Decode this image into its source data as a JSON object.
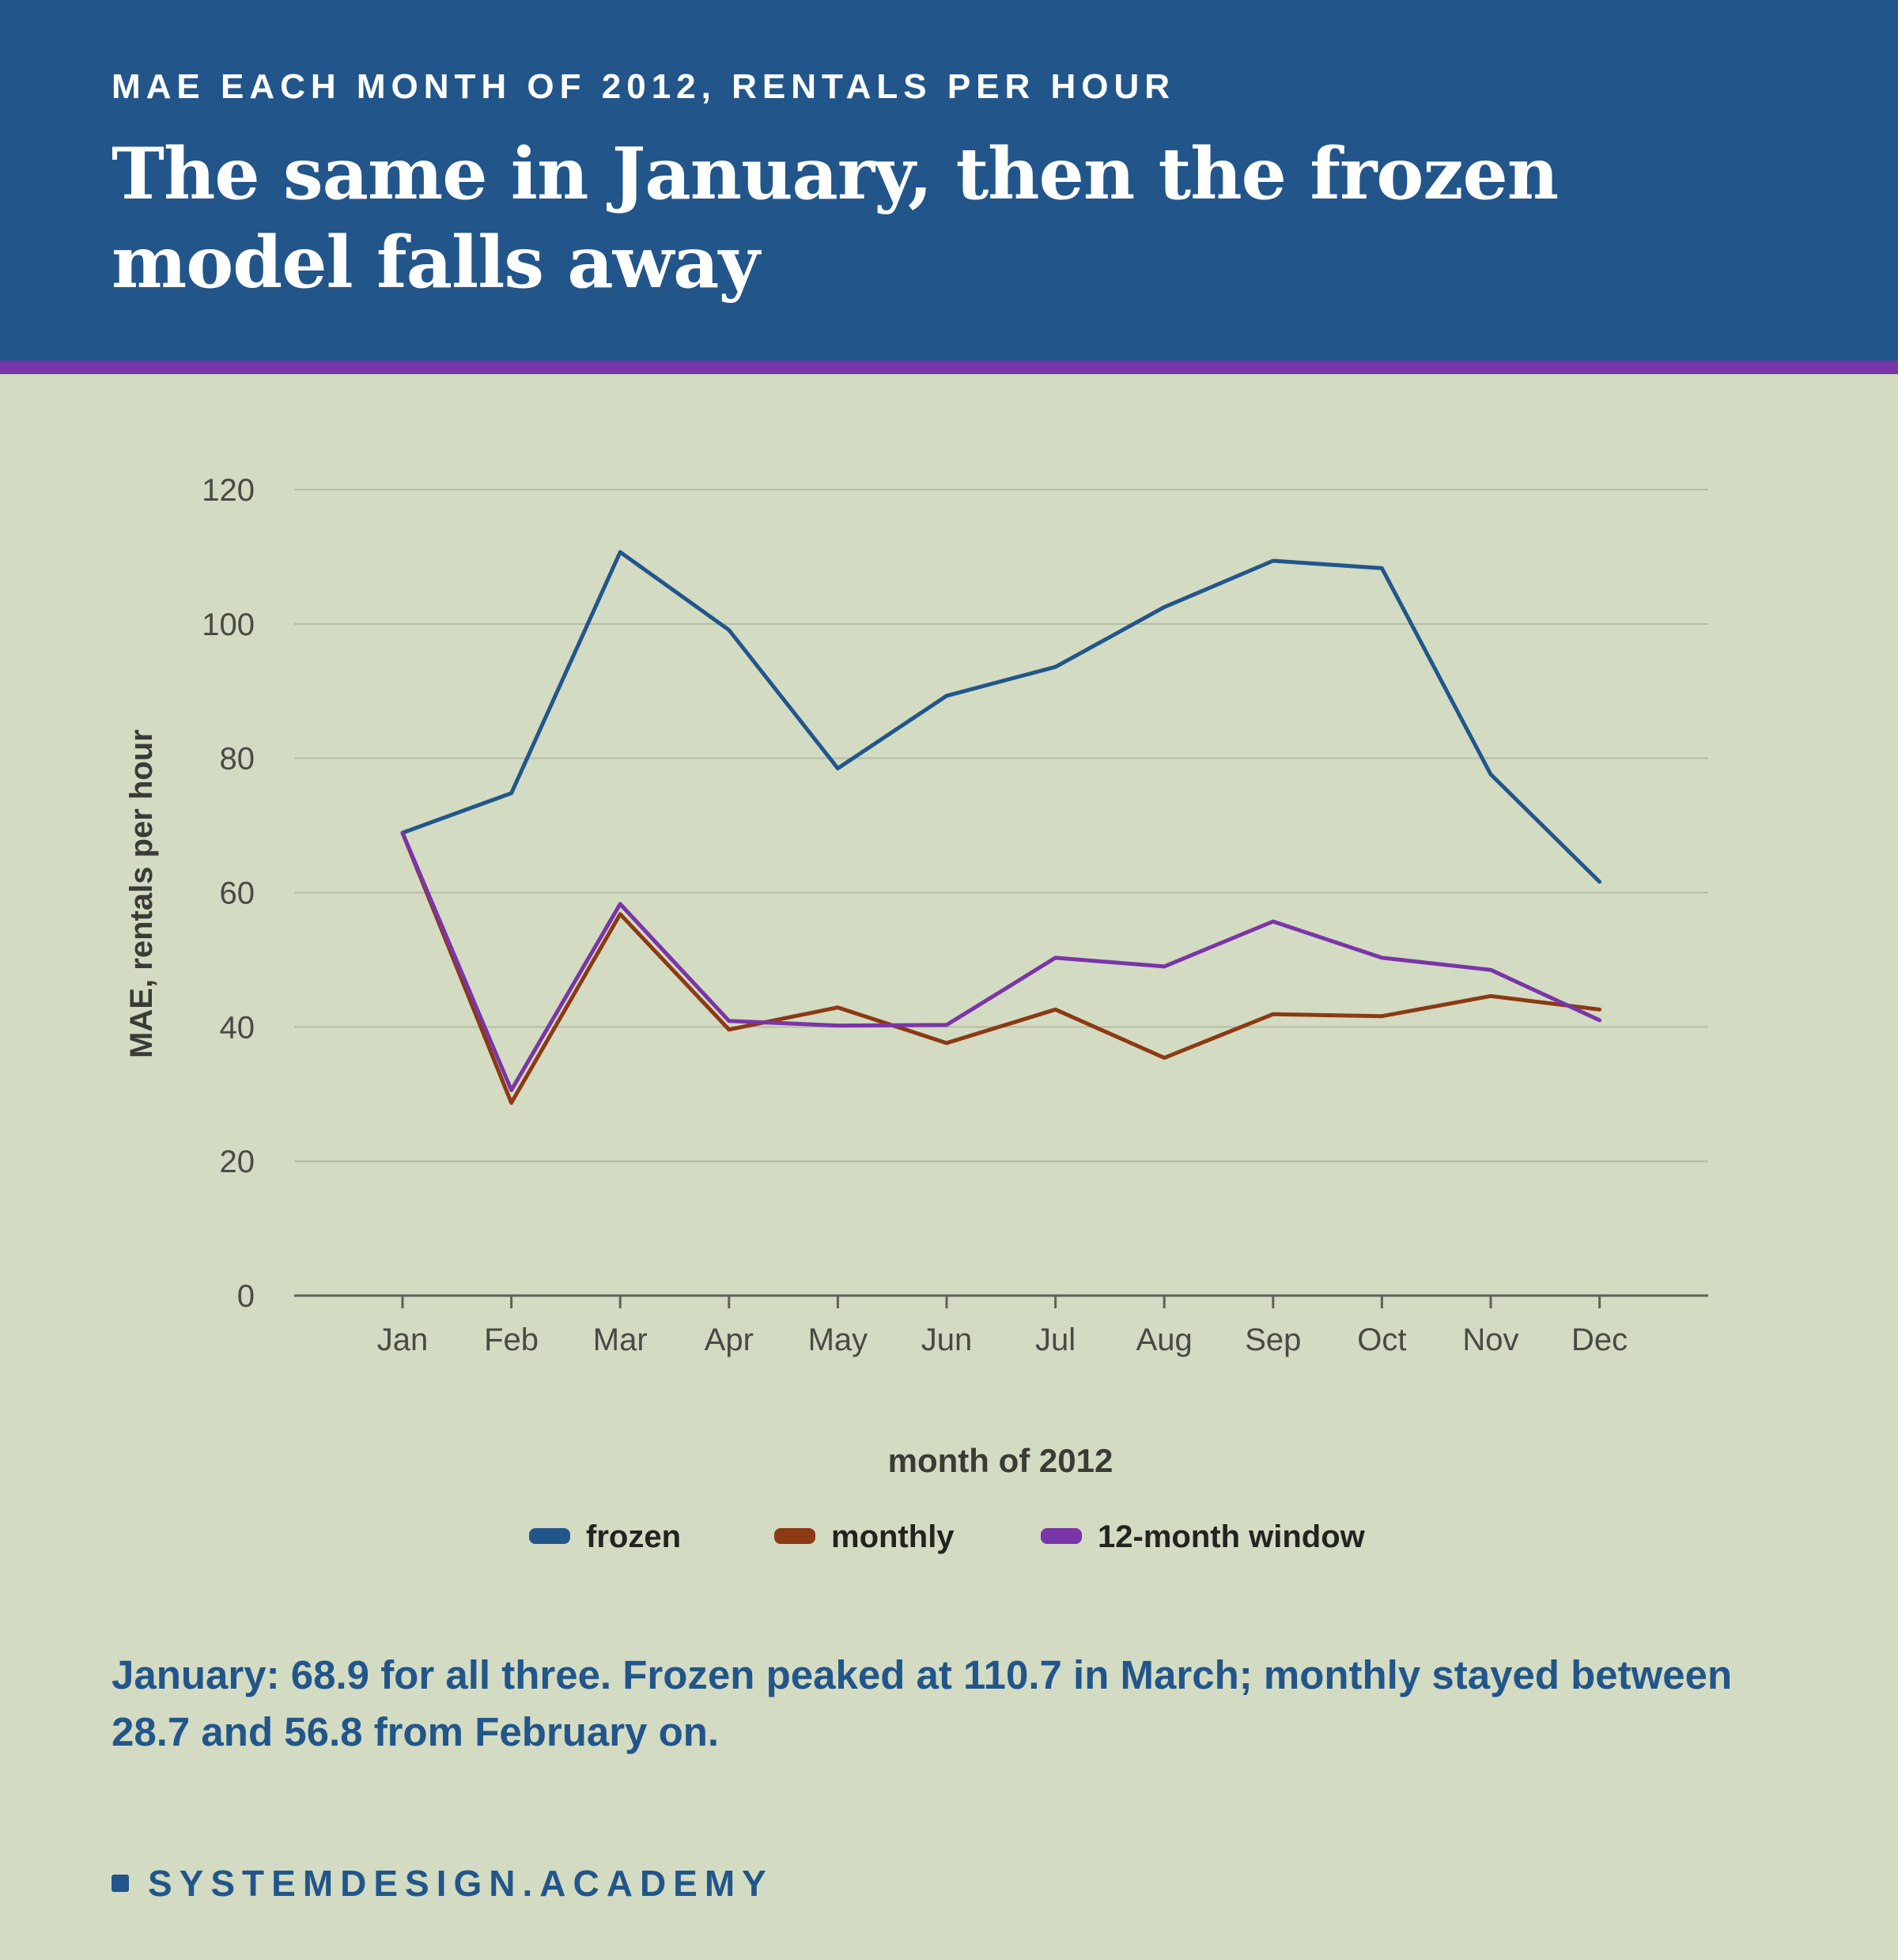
{
  "header": {
    "kicker": "MAE EACH MONTH OF 2012, RENTALS PER HOUR",
    "title": "The same in January, then the frozen model falls away"
  },
  "colors": {
    "header_bg": "#22568b",
    "accent": "#7a35a8",
    "background": "#d3dbc2",
    "frozen": "#22568b",
    "monthly": "#8b3a14",
    "window": "#7a35a8"
  },
  "chart_data": {
    "type": "line",
    "x": [
      "Jan",
      "Feb",
      "Mar",
      "Apr",
      "May",
      "Jun",
      "Jul",
      "Aug",
      "Sep",
      "Oct",
      "Nov",
      "Dec"
    ],
    "series": [
      {
        "name": "frozen",
        "color": "#22568b",
        "values": [
          68.9,
          74.8,
          110.7,
          99.1,
          78.5,
          89.3,
          93.6,
          102.5,
          109.4,
          108.3,
          77.6,
          61.6
        ]
      },
      {
        "name": "monthly",
        "color": "#8b3a14",
        "values": [
          68.9,
          28.7,
          56.8,
          39.6,
          42.9,
          37.6,
          42.6,
          35.4,
          41.9,
          41.6,
          44.6,
          42.6
        ]
      },
      {
        "name": "12-month window",
        "color": "#7a35a8",
        "values": [
          68.9,
          30.6,
          58.3,
          40.9,
          40.2,
          40.3,
          50.3,
          49.0,
          55.7,
          50.3,
          48.5,
          41.0
        ]
      }
    ],
    "xlabel": "month of 2012",
    "ylabel": "MAE, rentals per hour",
    "ylim": [
      0,
      120
    ],
    "yticks": [
      0,
      20,
      40,
      60,
      80,
      100,
      120
    ],
    "grid": true,
    "legend": "bottom-center"
  },
  "takeaway": "January: 68.9 for all three. Frozen peaked at 110.7 in March; monthly stayed between 28.7 and 56.8 from February on.",
  "brand": {
    "icon": "square-icon",
    "text": "SYSTEMDESIGN.ACADEMY"
  }
}
